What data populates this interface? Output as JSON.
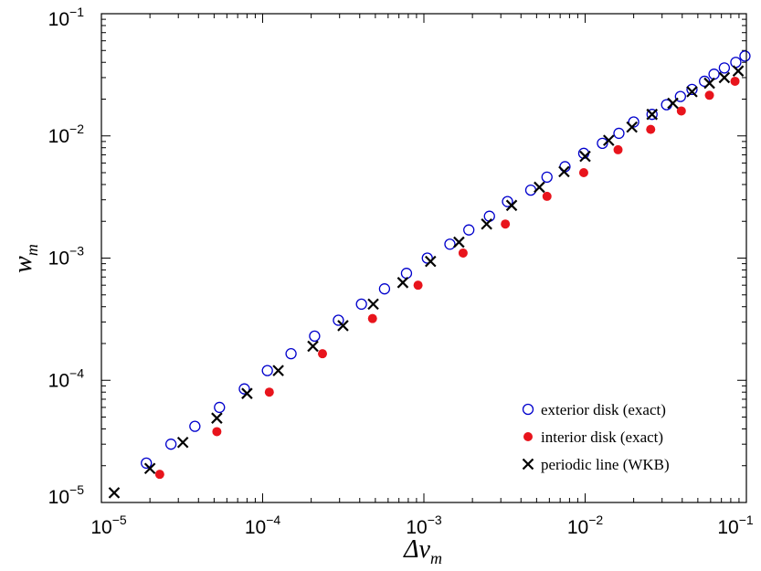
{
  "chart_data": {
    "type": "scatter",
    "xscale": "log",
    "yscale": "log",
    "xlim": [
      1e-05,
      0.1
    ],
    "ylim": [
      1e-05,
      0.1
    ],
    "grid": false,
    "legend_position": "bottom-right",
    "xlabel": {
      "base": "Δν",
      "sub": "m"
    },
    "ylabel": {
      "base": "w",
      "sub": "m"
    },
    "x_ticks": [
      {
        "value": 1e-05,
        "base": "10",
        "exp": "−5"
      },
      {
        "value": 0.0001,
        "base": "10",
        "exp": "−4"
      },
      {
        "value": 0.001,
        "base": "10",
        "exp": "−3"
      },
      {
        "value": 0.01,
        "base": "10",
        "exp": "−2"
      },
      {
        "value": 0.1,
        "base": "10",
        "exp": "−1"
      }
    ],
    "y_ticks": [
      {
        "value": 1e-05,
        "base": "10",
        "exp": "−5"
      },
      {
        "value": 0.0001,
        "base": "10",
        "exp": "−4"
      },
      {
        "value": 0.001,
        "base": "10",
        "exp": "−3"
      },
      {
        "value": 0.01,
        "base": "10",
        "exp": "−2"
      },
      {
        "value": 0.1,
        "base": "10",
        "exp": "−1"
      }
    ],
    "series": [
      {
        "name": "exterior disk (exact)",
        "marker": "open-circle",
        "color": "#0000cc",
        "points": [
          [
            1.9e-05,
            2.1e-05
          ],
          [
            2.7e-05,
            3e-05
          ],
          [
            3.8e-05,
            4.2e-05
          ],
          [
            5.4e-05,
            6e-05
          ],
          [
            7.7e-05,
            8.5e-05
          ],
          [
            0.000107,
            0.00012
          ],
          [
            0.00015,
            0.000165
          ],
          [
            0.00021,
            0.00023
          ],
          [
            0.000295,
            0.00031
          ],
          [
            0.00041,
            0.00042
          ],
          [
            0.00057,
            0.00056
          ],
          [
            0.00078,
            0.00075
          ],
          [
            0.00105,
            0.001
          ],
          [
            0.00145,
            0.0013
          ],
          [
            0.0019,
            0.0017
          ],
          [
            0.00255,
            0.0022
          ],
          [
            0.0033,
            0.0029
          ],
          [
            0.0046,
            0.0036
          ],
          [
            0.0058,
            0.0046
          ],
          [
            0.0075,
            0.0056
          ],
          [
            0.0098,
            0.0072
          ],
          [
            0.0128,
            0.0087
          ],
          [
            0.0162,
            0.0105
          ],
          [
            0.02,
            0.013
          ],
          [
            0.026,
            0.015
          ],
          [
            0.032,
            0.018
          ],
          [
            0.039,
            0.021
          ],
          [
            0.046,
            0.024
          ],
          [
            0.055,
            0.028
          ],
          [
            0.063,
            0.032
          ],
          [
            0.073,
            0.036
          ],
          [
            0.086,
            0.04
          ],
          [
            0.098,
            0.045
          ]
        ]
      },
      {
        "name": "interior disk (exact)",
        "marker": "filled-circle",
        "color": "#e8141c",
        "points": [
          [
            2.3e-05,
            1.7e-05
          ],
          [
            5.2e-05,
            3.8e-05
          ],
          [
            0.00011,
            8e-05
          ],
          [
            0.000235,
            0.000165
          ],
          [
            0.00048,
            0.00032
          ],
          [
            0.00092,
            0.0006
          ],
          [
            0.00175,
            0.0011
          ],
          [
            0.0032,
            0.0019
          ],
          [
            0.0058,
            0.0032
          ],
          [
            0.0098,
            0.005
          ],
          [
            0.016,
            0.0077
          ],
          [
            0.0255,
            0.0113
          ],
          [
            0.0395,
            0.016
          ],
          [
            0.059,
            0.0215
          ],
          [
            0.085,
            0.028
          ]
        ]
      },
      {
        "name": "periodic line (WKB)",
        "marker": "x",
        "color": "#000000",
        "points": [
          [
            1.2e-05,
            1.2e-05
          ],
          [
            2e-05,
            1.9e-05
          ],
          [
            3.2e-05,
            3.1e-05
          ],
          [
            5.2e-05,
            4.9e-05
          ],
          [
            8e-05,
            7.8e-05
          ],
          [
            0.000125,
            0.00012
          ],
          [
            0.000205,
            0.00019
          ],
          [
            0.000315,
            0.00028
          ],
          [
            0.000485,
            0.00042
          ],
          [
            0.00074,
            0.00063
          ],
          [
            0.0011,
            0.00094
          ],
          [
            0.00165,
            0.00135
          ],
          [
            0.00245,
            0.0019
          ],
          [
            0.0035,
            0.0027
          ],
          [
            0.0052,
            0.0038
          ],
          [
            0.0074,
            0.0051
          ],
          [
            0.01,
            0.0068
          ],
          [
            0.014,
            0.0092
          ],
          [
            0.0195,
            0.0118
          ],
          [
            0.026,
            0.015
          ],
          [
            0.035,
            0.0185
          ],
          [
            0.046,
            0.023
          ],
          [
            0.059,
            0.027
          ],
          [
            0.073,
            0.03
          ],
          [
            0.089,
            0.034
          ]
        ]
      }
    ]
  }
}
